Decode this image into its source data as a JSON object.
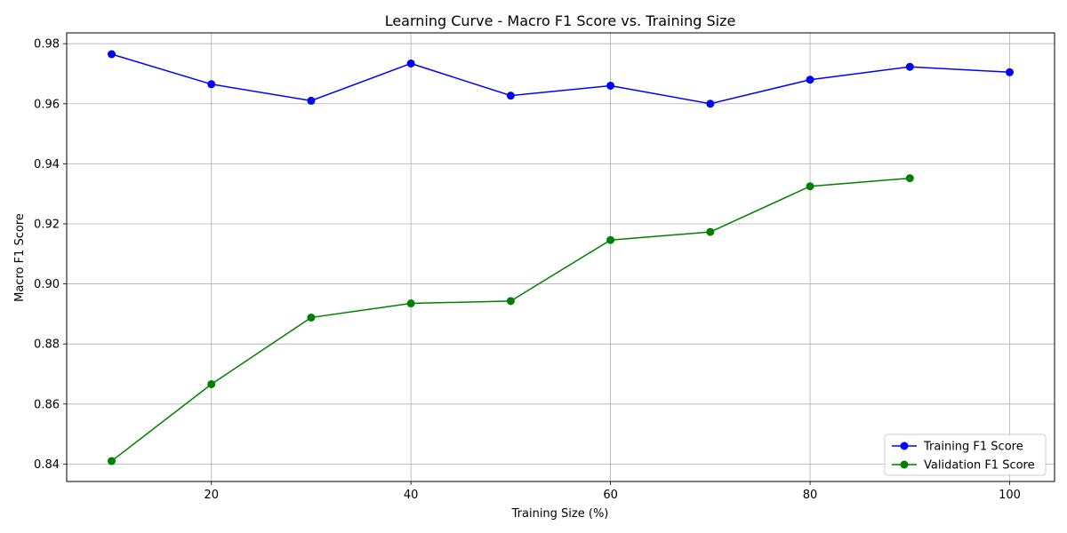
{
  "chart_data": {
    "type": "line",
    "title": "Learning Curve - Macro F1 Score vs. Training Size",
    "xlabel": "Training Size (%)",
    "ylabel": "Macro F1 Score",
    "xlim": [
      5.5,
      104.5
    ],
    "ylim": [
      0.8342,
      0.9836
    ],
    "xticks": [
      20,
      40,
      60,
      80,
      100
    ],
    "xtick_labels": [
      "20",
      "40",
      "60",
      "80",
      "100"
    ],
    "yticks": [
      0.84,
      0.86,
      0.88,
      0.9,
      0.92,
      0.94,
      0.96,
      0.98
    ],
    "ytick_labels": [
      "0.84",
      "0.86",
      "0.88",
      "0.90",
      "0.92",
      "0.94",
      "0.96",
      "0.98"
    ],
    "grid": true,
    "legend_position": "lower-right",
    "series": [
      {
        "name": "Training F1 Score",
        "color": "#0000ff",
        "marker": "circle",
        "x": [
          10,
          20,
          30,
          40,
          50,
          60,
          70,
          80,
          90,
          100
        ],
        "y": [
          0.9765,
          0.9665,
          0.961,
          0.9734,
          0.9627,
          0.966,
          0.96,
          0.968,
          0.9723,
          0.9705
        ]
      },
      {
        "name": "Validation F1 Score",
        "color": "#008000",
        "marker": "circle",
        "x": [
          10,
          20,
          30,
          40,
          50,
          60,
          70,
          80,
          90
        ],
        "y": [
          0.841,
          0.8666,
          0.8888,
          0.8935,
          0.8943,
          0.9146,
          0.9173,
          0.9325,
          0.9352
        ]
      }
    ]
  }
}
